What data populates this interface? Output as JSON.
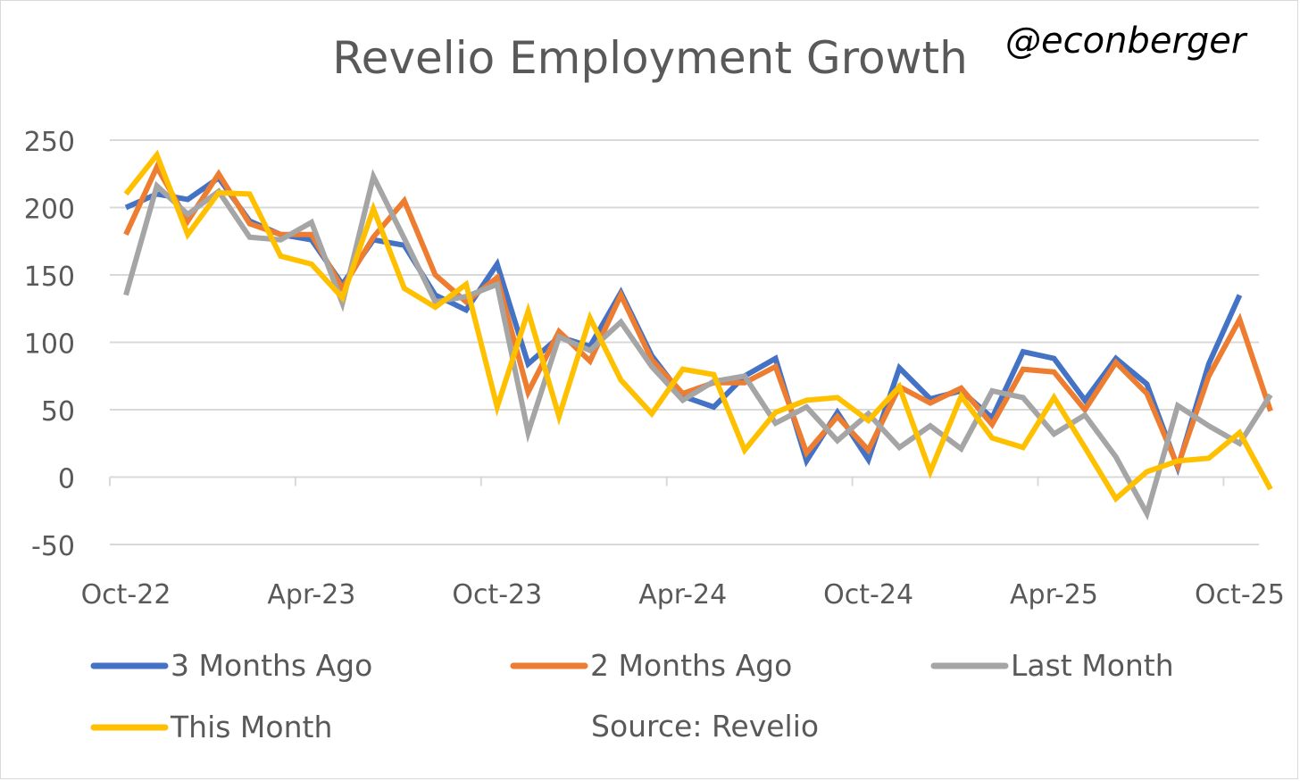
{
  "chart_data": {
    "type": "line",
    "title": "Revelio Employment Growth",
    "watermark": "@econberger",
    "source": "Source: Revelio",
    "xlabel": "",
    "ylabel": "",
    "ylim": [
      -50,
      250
    ],
    "yticks": [
      250,
      200,
      150,
      100,
      50,
      0,
      -50
    ],
    "x_tick_labels": [
      "Oct-22",
      "Apr-23",
      "Oct-23",
      "Apr-24",
      "Oct-24",
      "Apr-25",
      "Oct-25"
    ],
    "x_tick_month_index": [
      0,
      6,
      12,
      18,
      24,
      30,
      36
    ],
    "series": [
      {
        "name": "3 Months Ago",
        "color": "#4472c4",
        "start_index": 0,
        "values": [
          200,
          210,
          206,
          222,
          190,
          180,
          176,
          143,
          176,
          172,
          135,
          124,
          158,
          84,
          104,
          97,
          137,
          90,
          60,
          52,
          75,
          88,
          12,
          48,
          13,
          81,
          58,
          64,
          44,
          93,
          88,
          57,
          88,
          69,
          7,
          84,
          135
        ]
      },
      {
        "name": "2 Months Ago",
        "color": "#ed7d31",
        "start_index": 0,
        "values": [
          180,
          230,
          190,
          225,
          188,
          180,
          180,
          140,
          178,
          205,
          150,
          130,
          148,
          63,
          108,
          86,
          135,
          87,
          62,
          70,
          70,
          82,
          18,
          45,
          20,
          67,
          55,
          66,
          39,
          80,
          78,
          50,
          85,
          62,
          8,
          75,
          117,
          49
        ]
      },
      {
        "name": "Last Month",
        "color": "#a5a5a5",
        "start_index": 0,
        "values": [
          135,
          216,
          195,
          212,
          178,
          176,
          189,
          129,
          223,
          177,
          130,
          134,
          143,
          33,
          104,
          94,
          115,
          82,
          57,
          71,
          75,
          40,
          52,
          27,
          47,
          22,
          38,
          21,
          64,
          59,
          32,
          46,
          15,
          -27,
          53,
          38,
          25,
          61
        ]
      },
      {
        "name": "This Month",
        "color": "#ffc000",
        "start_index": 0,
        "values": [
          210,
          239,
          180,
          211,
          210,
          164,
          158,
          133,
          199,
          140,
          126,
          143,
          52,
          123,
          45,
          118,
          72,
          47,
          80,
          76,
          20,
          48,
          57,
          59,
          42,
          67,
          4,
          60,
          29,
          22,
          59,
          22,
          -16,
          4,
          12,
          14,
          33,
          -9
        ]
      }
    ],
    "legend_placement": "bottom"
  }
}
